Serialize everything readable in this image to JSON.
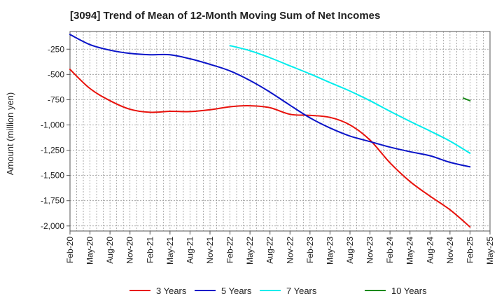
{
  "chart_data": {
    "type": "line",
    "title": "[3094]  Trend of Mean of 12-Month Moving Sum of Net Incomes",
    "xlabel": "",
    "ylabel": "Amount (million yen)",
    "ylim": [
      -2050,
      -75
    ],
    "yticks": [
      -250,
      -500,
      -750,
      -1000,
      -1250,
      -1500,
      -1750,
      -2000
    ],
    "ytick_labels": [
      "-250",
      "-500",
      "-750",
      "-1,000",
      "-1,250",
      "-1,500",
      "-1,750",
      "-2,000"
    ],
    "x_range": [
      "Feb-20",
      "May-25"
    ],
    "xtick_labels": [
      "Feb-20",
      "May-20",
      "Aug-20",
      "Nov-20",
      "Feb-21",
      "May-21",
      "Aug-21",
      "Nov-21",
      "Feb-22",
      "May-22",
      "Aug-22",
      "Nov-22",
      "Feb-23",
      "May-23",
      "Aug-23",
      "Nov-23",
      "Feb-24",
      "May-24",
      "Aug-24",
      "Nov-24",
      "Feb-25",
      "May-25"
    ],
    "grid": true,
    "legend_position": "bottom",
    "series": [
      {
        "name": "3 Years",
        "color": "#e8120c",
        "x": [
          "Feb-20",
          "May-20",
          "Aug-20",
          "Nov-20",
          "Feb-21",
          "May-21",
          "Aug-21",
          "Nov-21",
          "Feb-22",
          "May-22",
          "Aug-22",
          "Nov-22",
          "Feb-23",
          "May-23",
          "Aug-23",
          "Nov-23",
          "Feb-24",
          "May-24",
          "Aug-24",
          "Nov-24",
          "Feb-25"
        ],
        "values": [
          -450,
          -640,
          -760,
          -845,
          -875,
          -865,
          -868,
          -850,
          -820,
          -810,
          -830,
          -895,
          -905,
          -925,
          -1000,
          -1150,
          -1375,
          -1560,
          -1705,
          -1840,
          -2010
        ]
      },
      {
        "name": "5 Years",
        "color": "#0a14c8",
        "x": [
          "Feb-20",
          "May-20",
          "Aug-20",
          "Nov-20",
          "Feb-21",
          "May-21",
          "Aug-21",
          "Nov-21",
          "Feb-22",
          "May-22",
          "Aug-22",
          "Nov-22",
          "Feb-23",
          "May-23",
          "Aug-23",
          "Nov-23",
          "Feb-24",
          "May-24",
          "Aug-24",
          "Nov-24",
          "Feb-25"
        ],
        "values": [
          -105,
          -205,
          -260,
          -292,
          -305,
          -305,
          -345,
          -400,
          -465,
          -560,
          -675,
          -805,
          -930,
          -1030,
          -1110,
          -1165,
          -1220,
          -1265,
          -1305,
          -1370,
          -1415
        ]
      },
      {
        "name": "7 Years",
        "color": "#00ecec",
        "x": [
          "Feb-22",
          "May-22",
          "Aug-22",
          "Nov-22",
          "Feb-23",
          "May-23",
          "Aug-23",
          "Nov-23",
          "Feb-24",
          "May-24",
          "Aug-24",
          "Nov-24",
          "Feb-25"
        ],
        "values": [
          -215,
          -265,
          -335,
          -415,
          -495,
          -580,
          -665,
          -760,
          -865,
          -965,
          -1060,
          -1160,
          -1280
        ]
      },
      {
        "name": "10 Years",
        "color": "#1a8a1a",
        "x": [
          "Jan-25",
          "Feb-25"
        ],
        "values": [
          -735,
          -760
        ]
      }
    ]
  }
}
